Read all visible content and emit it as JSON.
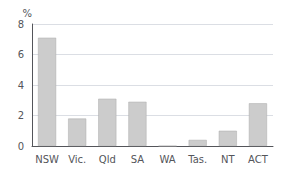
{
  "chart_data": {
    "type": "bar",
    "ylabel": "%",
    "categories": [
      "NSW",
      "Vic.",
      "Qld",
      "SA",
      "WA",
      "Tas.",
      "NT",
      "ACT"
    ],
    "values": [
      7.1,
      1.8,
      3.1,
      2.9,
      0.0,
      0.4,
      1.0,
      2.8
    ],
    "color": "#cccccc",
    "ylim": [
      0,
      8
    ],
    "yticks": [
      0,
      2,
      4,
      6,
      8
    ],
    "grid": true
  }
}
